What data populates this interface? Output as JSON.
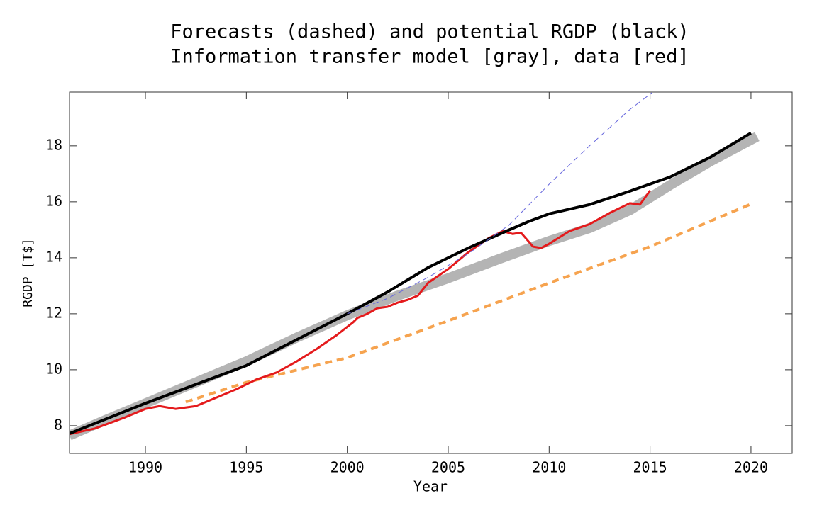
{
  "chart_data": {
    "type": "line",
    "title": "Forecasts (dashed) and potential RGDP (black)",
    "subtitle": "Information transfer model [gray], data [red]",
    "x_label": "Year",
    "y_label": "RGDP [T$]",
    "xlim": [
      1986.24,
      2022.04
    ],
    "ylim": [
      7.01,
      19.92
    ],
    "xticks": [
      1990,
      1995,
      2000,
      2005,
      2010,
      2015,
      2020
    ],
    "yticks": [
      8,
      10,
      12,
      14,
      16,
      18
    ],
    "series": [
      {
        "color": "#b4b4b4",
        "width": 14,
        "style": "solid",
        "x": [
          1986.24,
          1988,
          1990,
          1992.5,
          1995,
          1997.5,
          2000,
          2002.5,
          2005,
          2007.5,
          2010,
          2012,
          2014,
          2016,
          2018,
          2020.3
        ],
        "values": [
          7.65,
          8.2,
          8.8,
          9.55,
          10.3,
          11.15,
          11.95,
          12.65,
          13.27,
          13.95,
          14.6,
          15.06,
          15.7,
          16.6,
          17.45,
          18.33
        ]
      },
      {
        "color": "#e41a1c",
        "width": 3,
        "style": "solid",
        "x": [
          1986.24,
          1987.5,
          1989,
          1990,
          1990.7,
          1991.5,
          1992.5,
          1993.5,
          1994.5,
          1995.5,
          1996.5,
          1997.5,
          1998.5,
          1999.5,
          2000.3,
          2000.5,
          2001,
          2001.5,
          2002,
          2002.5,
          2003,
          2003.5,
          2004,
          2005,
          2006,
          2007,
          2007.7,
          2008.2,
          2008.6,
          2009.2,
          2009.6,
          2010,
          2011,
          2012,
          2013,
          2014,
          2014.5,
          2015
        ],
        "values": [
          7.7,
          7.9,
          8.3,
          8.6,
          8.7,
          8.6,
          8.7,
          9.0,
          9.3,
          9.65,
          9.9,
          10.3,
          10.75,
          11.25,
          11.7,
          11.85,
          12.0,
          12.2,
          12.25,
          12.4,
          12.5,
          12.65,
          13.1,
          13.6,
          14.2,
          14.7,
          14.95,
          14.85,
          14.9,
          14.4,
          14.35,
          14.5,
          14.95,
          15.2,
          15.6,
          15.95,
          15.9,
          16.4
        ]
      },
      {
        "color": "#000000",
        "width": 4,
        "style": "solid",
        "x": [
          1986.24,
          1990,
          1995,
          2000,
          2002,
          2004,
          2006,
          2008,
          2009,
          2010,
          2012,
          2014,
          2016,
          2018,
          2020
        ],
        "values": [
          7.72,
          8.8,
          10.15,
          12.0,
          12.78,
          13.65,
          14.35,
          14.99,
          15.3,
          15.57,
          15.9,
          16.38,
          16.89,
          17.6,
          18.46
        ]
      },
      {
        "color": "#f6a34f",
        "width": 4,
        "style": "dashed",
        "x": [
          1992,
          1995,
          2000,
          2005,
          2010,
          2015,
          2020
        ],
        "values": [
          8.85,
          9.55,
          10.43,
          11.75,
          13.1,
          14.4,
          15.92
        ]
      },
      {
        "color": "#6666dd",
        "width": 1,
        "style": "dashed",
        "x": [
          2000,
          2002,
          2004,
          2006,
          2008,
          2010,
          2012,
          2014,
          2015.1
        ],
        "values": [
          12.0,
          12.55,
          13.3,
          14.15,
          15.16,
          16.63,
          18.0,
          19.3,
          19.9
        ]
      }
    ]
  }
}
